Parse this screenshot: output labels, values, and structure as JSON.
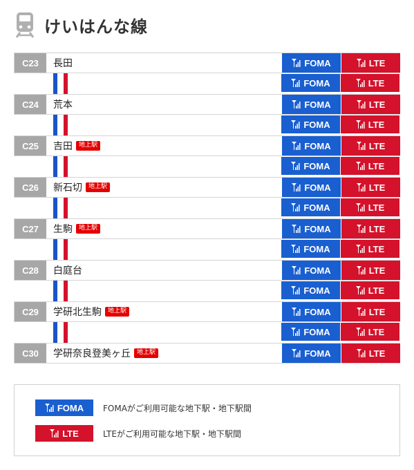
{
  "header": {
    "title": "けいはんな線",
    "icon": "train-icon"
  },
  "colors": {
    "foma": "#1a5fd0",
    "lte": "#d4122b",
    "code_bg": "#a7a7a7",
    "ground_tag": "#e50000"
  },
  "badges": {
    "foma": "FOMA",
    "lte": "LTE",
    "icon": "signal-antenna-icon"
  },
  "stations": [
    {
      "code": "C23",
      "name": "長田",
      "tag": ""
    },
    {
      "code": "C24",
      "name": "荒本",
      "tag": ""
    },
    {
      "code": "C25",
      "name": "吉田",
      "tag": "地上駅"
    },
    {
      "code": "C26",
      "name": "新石切",
      "tag": "地上駅"
    },
    {
      "code": "C27",
      "name": "生駒",
      "tag": "地上駅"
    },
    {
      "code": "C28",
      "name": "白庭台",
      "tag": ""
    },
    {
      "code": "C29",
      "name": "学研北生駒",
      "tag": "地上駅"
    },
    {
      "code": "C30",
      "name": "学研奈良登美ヶ丘",
      "tag": "地上駅"
    }
  ],
  "legend": [
    {
      "badge": "FOMA",
      "text": "FOMAがご利用可能な地下駅・地下駅間"
    },
    {
      "badge": "LTE",
      "text": "LTEがご利用可能な地下駅・地下駅間"
    }
  ]
}
